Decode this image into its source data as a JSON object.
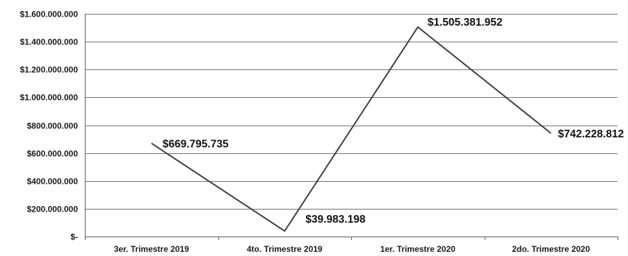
{
  "chart_data": {
    "type": "line",
    "title": "",
    "xlabel": "",
    "ylabel": "",
    "categories": [
      "3er. Trimestre 2019",
      "4to. Trimestre 2019",
      "1er. Trimestre 2020",
      "2do. Trimestre 2020"
    ],
    "values": [
      669795735,
      39983198,
      1505381952,
      742228812
    ],
    "data_labels": [
      "$669.795.735",
      "$39.983.198",
      "$1.505.381.952",
      "$742.228.812"
    ],
    "ylim": [
      0,
      1600000000
    ],
    "y_ticks": [
      0,
      200000000,
      400000000,
      600000000,
      800000000,
      1000000000,
      1200000000,
      1400000000,
      1600000000
    ],
    "y_tick_labels": [
      "$-",
      "$200.000.000",
      "$400.000.000",
      "$600.000.000",
      "$800.000.000",
      "$1.000.000.000",
      "$1.200.000.000",
      "$1.400.000.000",
      "$1.600.000.000"
    ],
    "grid": true,
    "legend": "none",
    "line_color": "#3c3c3c"
  }
}
